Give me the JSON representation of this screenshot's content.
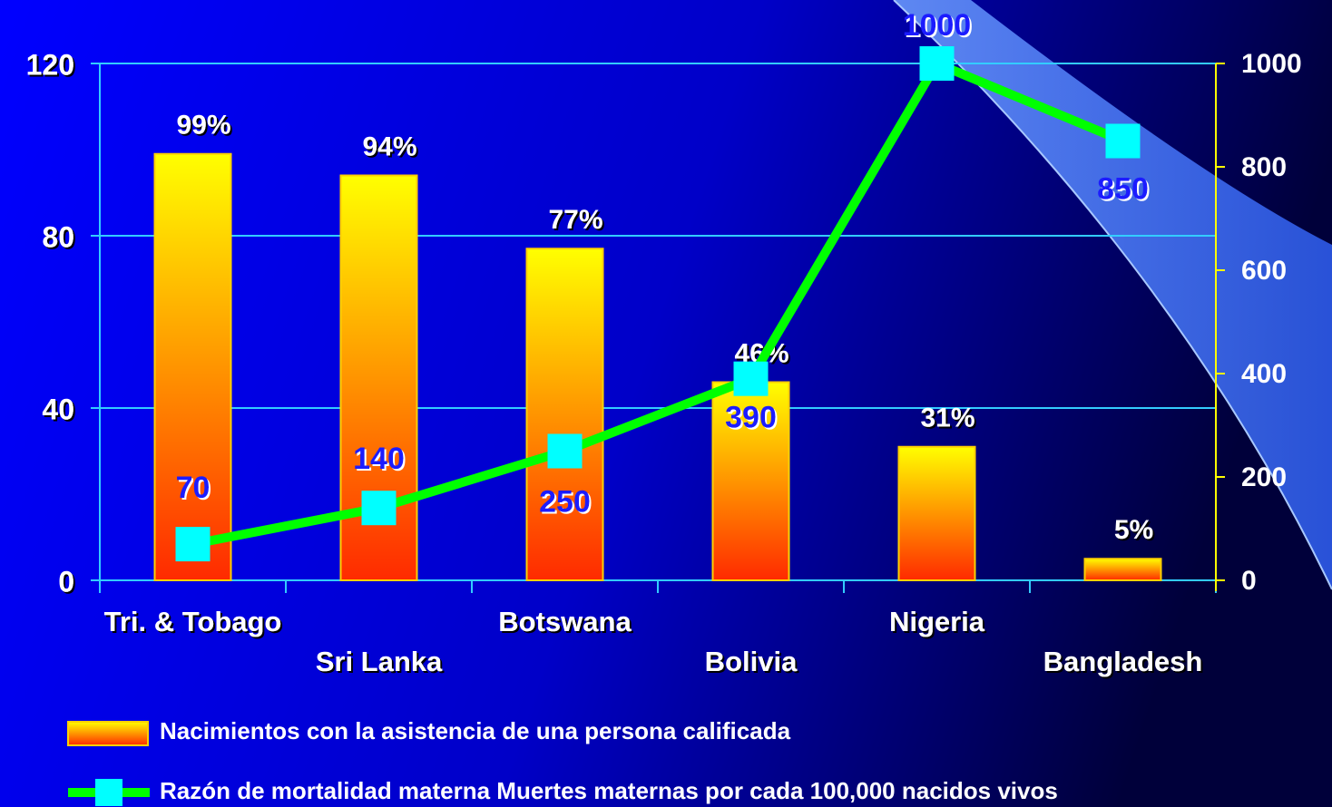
{
  "chart_data": {
    "type": "bar",
    "categories": [
      "Tri. & Tobago",
      "Sri Lanka",
      "Botswana",
      "Bolivia",
      "Nigeria",
      "Bangladesh"
    ],
    "series": [
      {
        "name": "Nacimientos con la asistencia de una persona calificada",
        "type": "bar",
        "color": "#ffff00",
        "gradient_to": "#ff2a00",
        "values": [
          99,
          94,
          77,
          46,
          31,
          5
        ],
        "value_labels": [
          "99%",
          "94%",
          "77%",
          "46%",
          "31%",
          "5%"
        ]
      },
      {
        "name": "Razón de mortalidad materna Muertes maternas por cada 100,000 nacidos vivos",
        "type": "line",
        "axis": "y2",
        "color": "#00ff00",
        "marker_color": "#00ffff",
        "values": [
          70,
          140,
          250,
          390,
          1000,
          850
        ]
      }
    ],
    "ylim": [
      0,
      120
    ],
    "yticks": [
      0,
      40,
      80,
      120
    ],
    "y2lim": [
      0,
      1000
    ],
    "y2ticks": [
      0,
      200,
      400,
      600,
      800,
      1000
    ],
    "grid": true
  }
}
